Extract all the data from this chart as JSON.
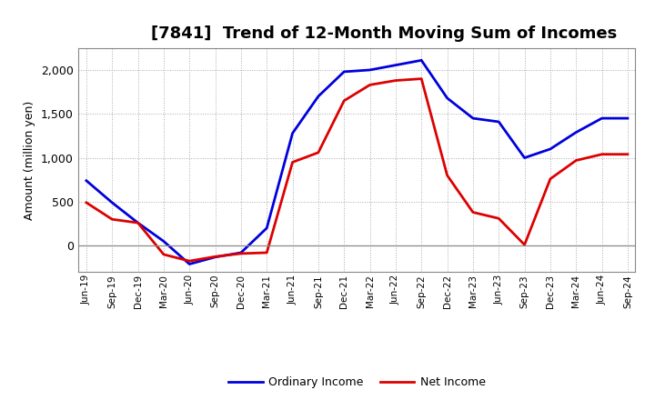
{
  "title": "[7841]  Trend of 12-Month Moving Sum of Incomes",
  "ylabel": "Amount (million yen)",
  "x_labels": [
    "Jun-19",
    "Sep-19",
    "Dec-19",
    "Mar-20",
    "Jun-20",
    "Sep-20",
    "Dec-20",
    "Mar-21",
    "Jun-21",
    "Sep-21",
    "Dec-21",
    "Mar-22",
    "Jun-22",
    "Sep-22",
    "Dec-22",
    "Mar-23",
    "Jun-23",
    "Sep-23",
    "Dec-23",
    "Mar-24",
    "Jun-24",
    "Sep-24"
  ],
  "ordinary_income": [
    740,
    490,
    260,
    50,
    -210,
    -130,
    -80,
    200,
    1280,
    1700,
    1980,
    2000,
    2055,
    2110,
    1680,
    1450,
    1410,
    1000,
    1100,
    1290,
    1450,
    1450
  ],
  "net_income": [
    490,
    300,
    260,
    -100,
    -175,
    -125,
    -90,
    -80,
    950,
    1060,
    1650,
    1830,
    1880,
    1900,
    800,
    380,
    310,
    10,
    760,
    970,
    1040,
    1040
  ],
  "ordinary_income_color": "#0000dd",
  "net_income_color": "#dd0000",
  "ylim": [
    -300,
    2250
  ],
  "yticks": [
    0,
    500,
    1000,
    1500,
    2000
  ],
  "background_color": "#ffffff",
  "grid_color": "#aaaaaa",
  "title_fontsize": 13,
  "legend_labels": [
    "Ordinary Income",
    "Net Income"
  ]
}
